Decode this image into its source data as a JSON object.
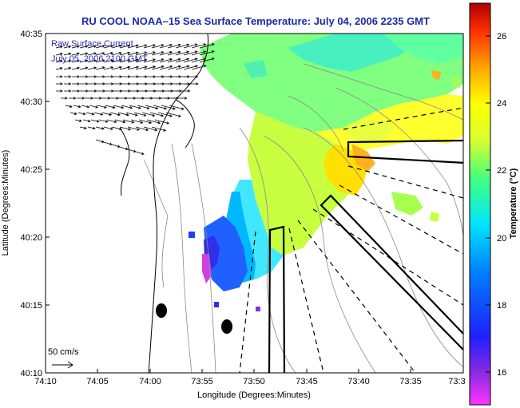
{
  "title": "RU COOL  NOAA–15  Sea Surface Temperature:  July 04, 2006 2235 GMT",
  "annotation": {
    "line1": "Raw Surface Current",
    "line2": "July 05, 2006 2100 GMT",
    "scale_label": "50 cm/s"
  },
  "map_data": {
    "type": "heatmap",
    "xlabel": "Longitude (Degrees:Minutes)",
    "ylabel": "Latitude (Degrees:Minutes)",
    "x_ticks": [
      "74:10",
      "74:05",
      "74:00",
      "73:55",
      "73:50",
      "73:45",
      "73:40",
      "73:35",
      "73:3"
    ],
    "y_ticks": [
      "40:35",
      "40:30",
      "40:25",
      "40:20",
      "40:15",
      "40:10"
    ],
    "colorbar": {
      "label": "Temperature (°C)",
      "ticks": [
        "26",
        "24",
        "22",
        "20",
        "18",
        "16"
      ],
      "range": [
        15,
        27
      ]
    }
  }
}
